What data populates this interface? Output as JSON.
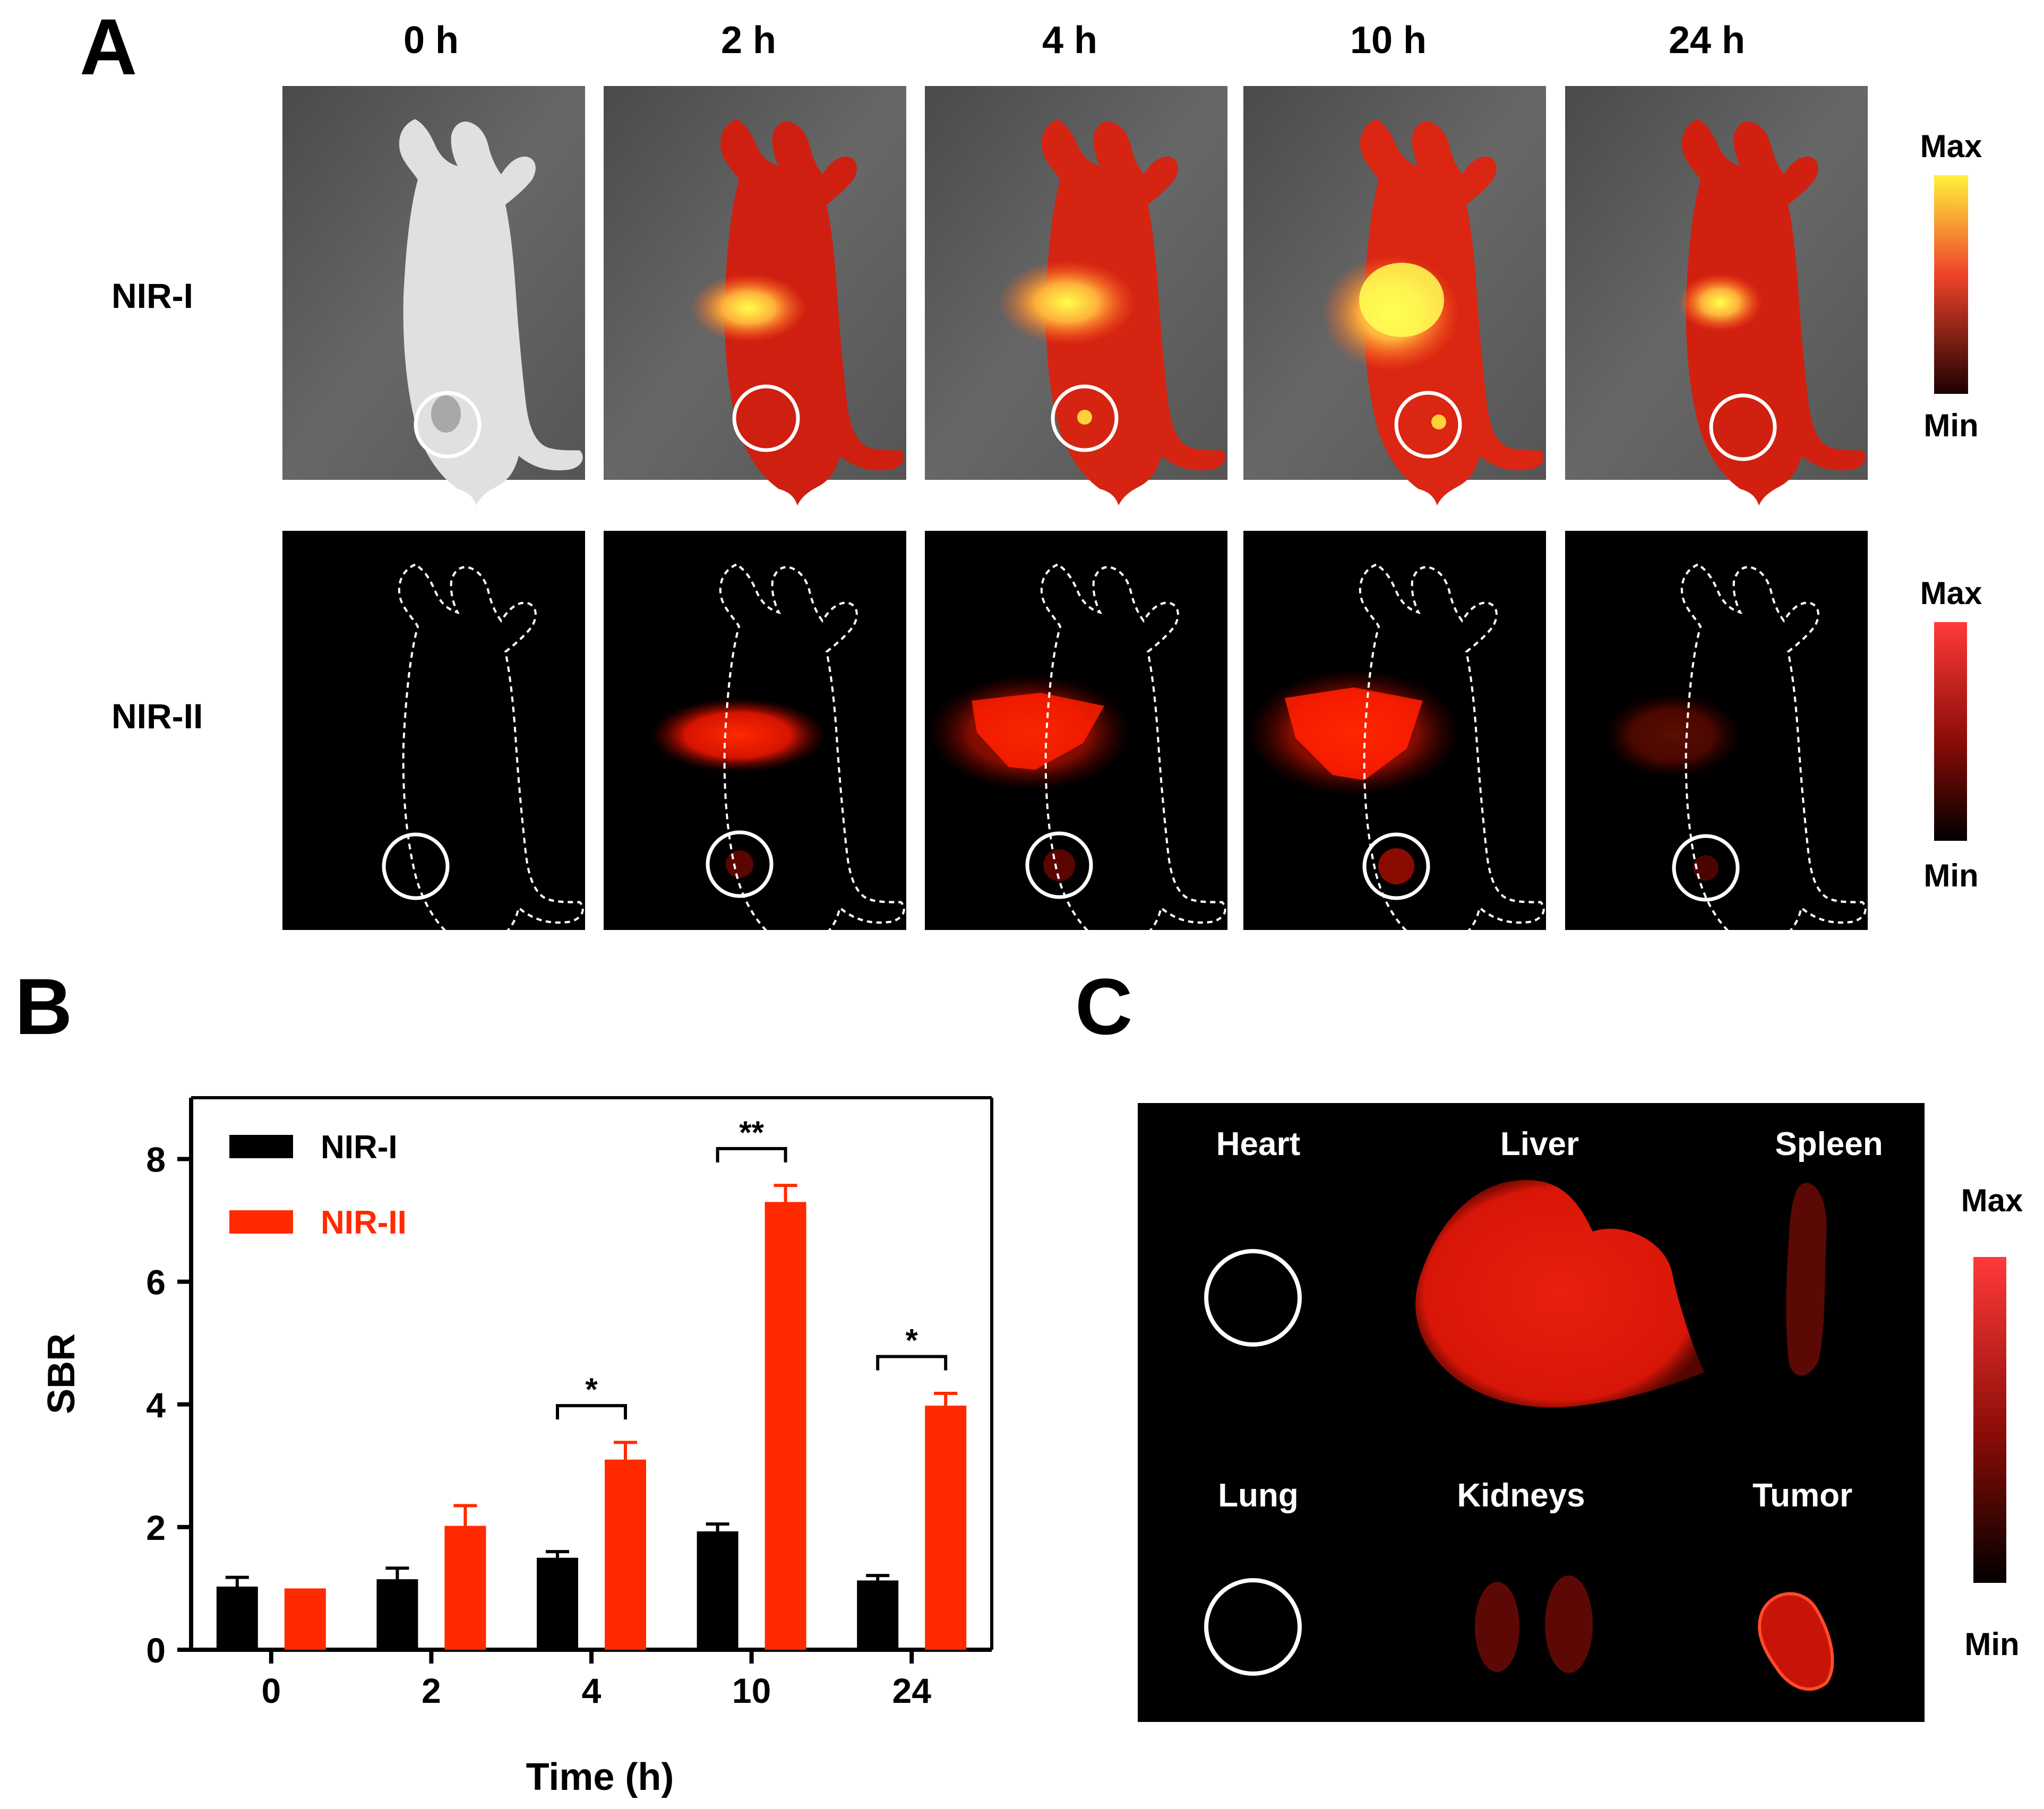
{
  "panels": {
    "a": {
      "letter": "A",
      "time_points": [
        "0 h",
        "2 h",
        "4 h",
        "10 h",
        "24 h"
      ],
      "rows": [
        {
          "label": "NIR-I",
          "scale_max": "Max",
          "scale_min": "Min"
        },
        {
          "label": "NIR-II",
          "scale_max": "Max",
          "scale_min": "Min"
        }
      ]
    },
    "b": {
      "letter": "B"
    },
    "c": {
      "letter": "C",
      "organs": [
        "Heart",
        "Liver",
        "Spleen",
        "Lung",
        "Kidneys",
        "Tumor"
      ],
      "scale_max": "Max",
      "scale_min": "Min"
    }
  },
  "chart_data": {
    "type": "bar",
    "title": "",
    "xlabel": "Time (h)",
    "ylabel": "SBR",
    "categories": [
      "0",
      "2",
      "4",
      "10",
      "24"
    ],
    "ylim": [
      0,
      9
    ],
    "yticks": [
      0,
      2,
      4,
      6,
      8
    ],
    "legend_position": "top-left",
    "series": [
      {
        "name": "NIR-I",
        "color": "#000000",
        "values": [
          1.03,
          1.15,
          1.5,
          1.93,
          1.13
        ],
        "errors": [
          0.15,
          0.18,
          0.1,
          0.12,
          0.08
        ]
      },
      {
        "name": "NIR-II",
        "color": "#ff2a00",
        "values": [
          1.0,
          2.02,
          3.1,
          7.3,
          3.98
        ],
        "errors": [
          0.0,
          0.33,
          0.28,
          0.27,
          0.2
        ]
      }
    ],
    "significance": [
      {
        "category": "4",
        "label": "*"
      },
      {
        "category": "10",
        "label": "**"
      },
      {
        "category": "24",
        "label": "*"
      }
    ]
  },
  "colors": {
    "nir1_bg": "#5f5f5f",
    "heat_dark": "#a50e00",
    "heat_mid": "#ff2a00",
    "heat_hot": "#ffee33",
    "nir2_glow": "#ff2200",
    "black": "#000000"
  }
}
